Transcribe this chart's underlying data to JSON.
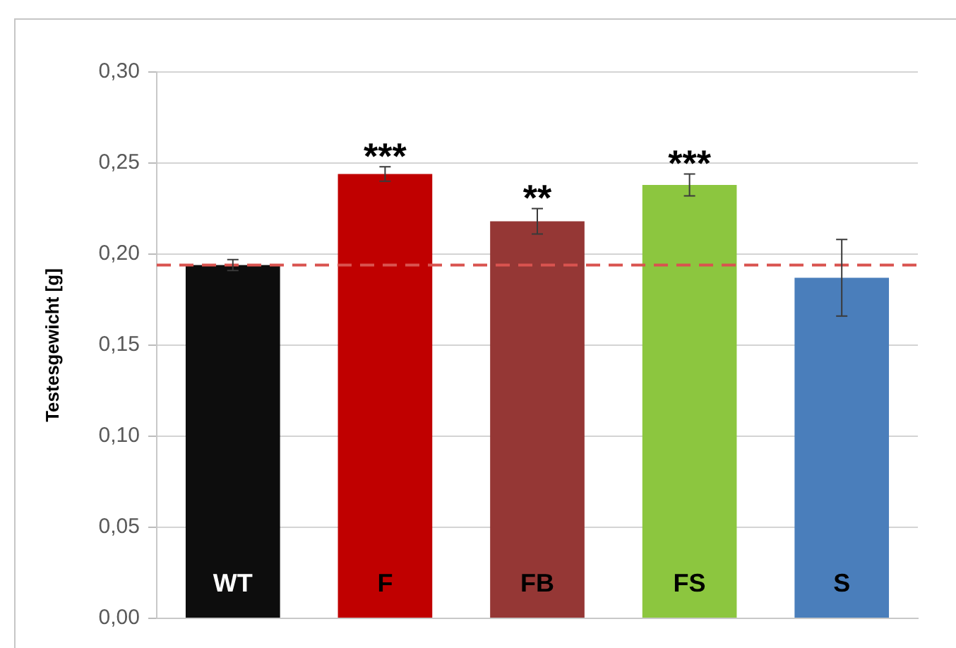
{
  "chart_data": {
    "type": "bar",
    "ylabel": "Testesgewicht [g]",
    "categories": [
      "WT",
      "F",
      "FB",
      "FS",
      "S"
    ],
    "values": [
      0.194,
      0.244,
      0.218,
      0.238,
      0.187
    ],
    "colors": [
      "#0d0d0d",
      "#c00000",
      "#953735",
      "#8cc63f",
      "#4a7ebb"
    ],
    "errors": [
      0.003,
      0.004,
      0.007,
      0.006,
      0.021
    ],
    "ylim": [
      0,
      0.3
    ],
    "yticks": [
      {
        "value": 0,
        "label": "0,00"
      },
      {
        "value": 0.05,
        "label": "0,05"
      },
      {
        "value": 0.1,
        "label": "0,10"
      },
      {
        "value": 0.15,
        "label": "0,15"
      },
      {
        "value": 0.2,
        "label": "0,20"
      },
      {
        "value": 0.25,
        "label": "0,25"
      },
      {
        "value": 0.3,
        "label": "0,30"
      }
    ],
    "grid": "y",
    "ref_lines": [
      {
        "axis": "y",
        "value": 0.194,
        "color": "#d9534f",
        "line_style": "dashed"
      }
    ],
    "annotations": [
      {
        "text": "***",
        "x": "F",
        "y": 0.244
      },
      {
        "text": "**",
        "x": "FB",
        "y": 0.218
      },
      {
        "text": "***",
        "x": "FS",
        "y": 0.238
      }
    ]
  }
}
